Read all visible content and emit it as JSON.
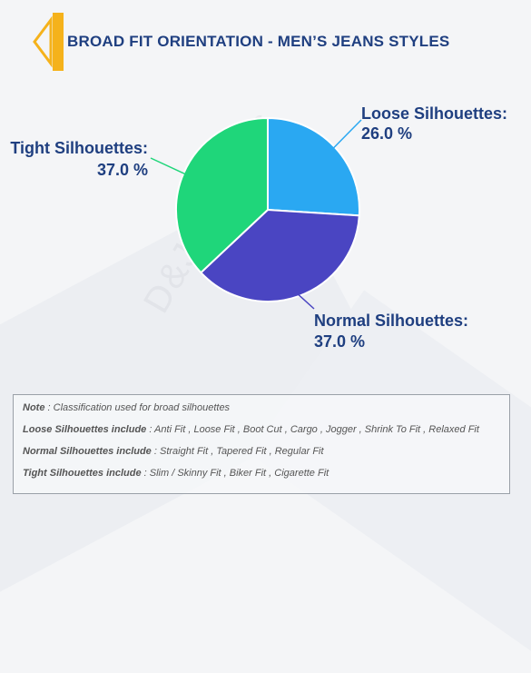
{
  "title": "BROAD FIT ORIENTATION - MEN’S JEANS STYLES",
  "watermark": "D&J Reports",
  "colors": {
    "title": "#1f3f80",
    "loose": "#2aa8f2",
    "normal": "#4a45c2",
    "tight": "#1fd67a",
    "accent": "#f5b21b"
  },
  "chart_data": {
    "type": "pie",
    "slices": [
      {
        "label": "Loose Silhouettes:",
        "value": 26.0,
        "value_label": "26.0 %",
        "color": "#2aa8f2"
      },
      {
        "label": "Normal Silhouettes:",
        "value": 37.0,
        "value_label": "37.0 %",
        "color": "#4a45c2"
      },
      {
        "label": "Tight Silhouettes:",
        "value": 37.0,
        "value_label": "37.0 %",
        "color": "#1fd67a"
      }
    ]
  },
  "notes": [
    {
      "key": "Note",
      "text": " : Classification used for broad silhouettes"
    },
    {
      "key": "Loose Silhouettes include",
      "text": " : Anti Fit , Loose Fit , Boot Cut , Cargo , Jogger , Shrink To Fit , Relaxed Fit"
    },
    {
      "key": "Normal Silhouettes include",
      "text": " : Straight Fit , Tapered Fit , Regular Fit"
    },
    {
      "key": "Tight Silhouettes include",
      "text": " : Slim / Skinny Fit , Biker Fit , Cigarette Fit"
    }
  ]
}
